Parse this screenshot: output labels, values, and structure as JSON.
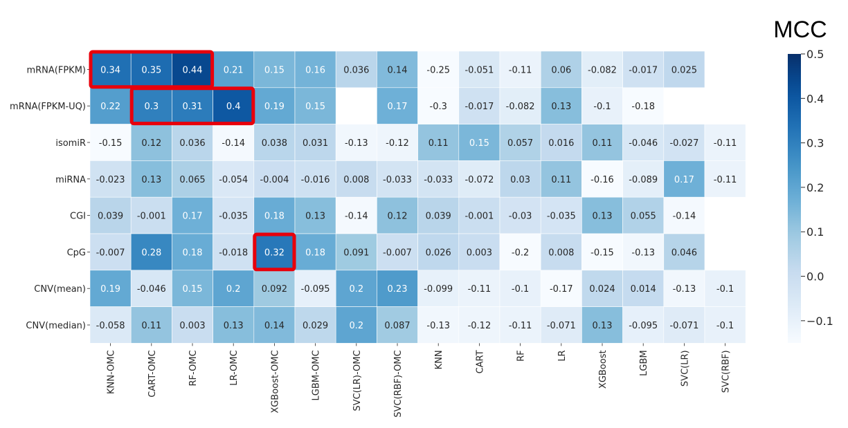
{
  "chart_data": {
    "type": "heatmap",
    "title": "",
    "xlabel": "",
    "ylabel": "",
    "rows": [
      "mRNA(FPKM)",
      "mRNA(FPKM-UQ)",
      "isomiR",
      "miRNA",
      "CGI",
      "CpG",
      "CNV(mean)",
      "CNV(median)"
    ],
    "columns": [
      "KNN-OMC",
      "CART-OMC",
      "RF-OMC",
      "LR-OMC",
      "XGBoost-OMC",
      "LGBM-OMC",
      "SVC(LR)-OMC",
      "SVC(RBF)-OMC",
      "KNN",
      "CART",
      "RF",
      "LR",
      "XGBoost",
      "LGBM",
      "SVC(LR)",
      "SVC(RBF)"
    ],
    "values": [
      [
        0.34,
        0.35,
        0.44,
        0.21,
        0.15,
        0.16,
        0.036,
        0.14,
        -0.25,
        -0.051,
        -0.11,
        0.06,
        -0.082,
        -0.017,
        0.025,
        null
      ],
      [
        0.22,
        0.3,
        0.31,
        0.4,
        0.19,
        0.15,
        null,
        0.17,
        -0.3,
        -0.017,
        -0.082,
        0.13,
        -0.1,
        -0.18,
        null,
        null
      ],
      [
        -0.15,
        0.12,
        0.036,
        -0.14,
        0.038,
        0.031,
        -0.13,
        -0.12,
        0.11,
        0.15,
        0.057,
        0.016,
        0.11,
        -0.046,
        -0.027,
        -0.11
      ],
      [
        -0.023,
        0.13,
        0.065,
        -0.054,
        -0.004,
        -0.016,
        0.008,
        -0.033,
        -0.033,
        -0.072,
        0.03,
        0.11,
        -0.16,
        -0.089,
        0.17,
        -0.11
      ],
      [
        0.039,
        -0.001,
        0.17,
        -0.035,
        0.18,
        0.13,
        -0.14,
        0.12,
        0.039,
        -0.001,
        -0.03,
        -0.035,
        0.13,
        0.055,
        -0.14,
        null
      ],
      [
        -0.007,
        0.28,
        0.18,
        -0.018,
        0.32,
        0.18,
        0.091,
        -0.007,
        0.026,
        0.003,
        -0.2,
        0.008,
        -0.15,
        -0.13,
        0.046,
        null
      ],
      [
        0.19,
        -0.046,
        0.15,
        0.2,
        0.092,
        -0.095,
        0.2,
        0.23,
        -0.099,
        -0.11,
        -0.1,
        -0.17,
        0.024,
        0.014,
        -0.13,
        -0.1
      ],
      [
        -0.058,
        0.11,
        0.003,
        0.13,
        0.14,
        0.029,
        0.2,
        0.087,
        -0.13,
        -0.12,
        -0.11,
        -0.071,
        0.13,
        -0.095,
        -0.071,
        -0.1
      ]
    ],
    "colorbar": {
      "title": "MCC",
      "min": -0.15,
      "max": 0.5,
      "ticks": [
        0.5,
        0.4,
        0.3,
        0.2,
        0.1,
        0.0,
        -0.1
      ],
      "tick_labels": [
        "0.5",
        "0.4",
        "0.3",
        "0.2",
        "0.1",
        "0.0",
        "−0.1"
      ],
      "colormap": "Blues"
    },
    "highlight_boxes": [
      {
        "row_start": 0,
        "row_end": 0,
        "col_start": 0,
        "col_end": 2
      },
      {
        "row_start": 1,
        "row_end": 1,
        "col_start": 1,
        "col_end": 3
      },
      {
        "row_start": 5,
        "row_end": 5,
        "col_start": 4,
        "col_end": 4
      }
    ],
    "highlight_color": "#e8000b",
    "grid": false,
    "legend": "right"
  }
}
